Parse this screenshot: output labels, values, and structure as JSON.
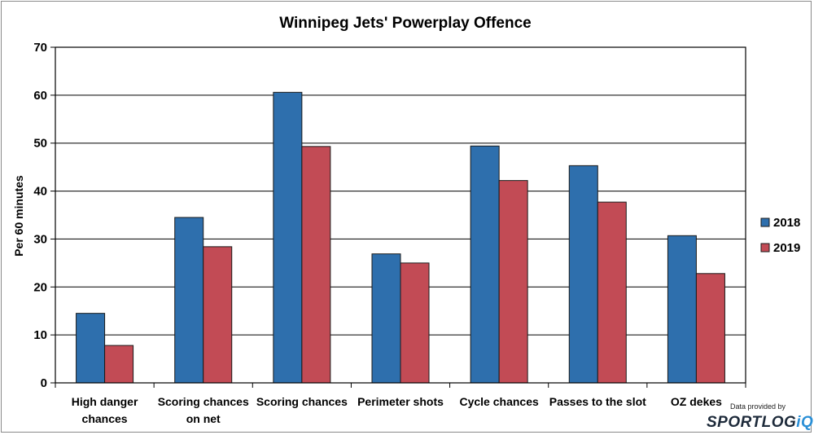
{
  "chart_data": {
    "type": "bar",
    "title": "Winnipeg Jets' Powerplay Offence",
    "ylabel": "Per 60 minutes",
    "xlabel": "",
    "ylim": [
      0,
      70
    ],
    "yticks": [
      0,
      10,
      20,
      30,
      40,
      50,
      60,
      70
    ],
    "grid": true,
    "legend_position": "right",
    "categories": [
      [
        "High danger",
        "chances"
      ],
      [
        "Scoring chances",
        "on net"
      ],
      [
        "Scoring chances"
      ],
      [
        "Perimeter shots"
      ],
      [
        "Cycle chances"
      ],
      [
        "Passes to the slot"
      ],
      [
        "OZ dekes"
      ]
    ],
    "series": [
      {
        "name": "2018",
        "color": "#2e6fad",
        "values": [
          14.5,
          34.5,
          60.6,
          26.9,
          49.4,
          45.3,
          30.7
        ]
      },
      {
        "name": "2019",
        "color": "#c24b55",
        "values": [
          7.8,
          28.4,
          49.3,
          25.0,
          42.2,
          37.7,
          22.8
        ]
      }
    ]
  },
  "credit": {
    "label": "Data provided by",
    "brand_text": "SPORTLOG",
    "brand_mark": "iQ"
  }
}
